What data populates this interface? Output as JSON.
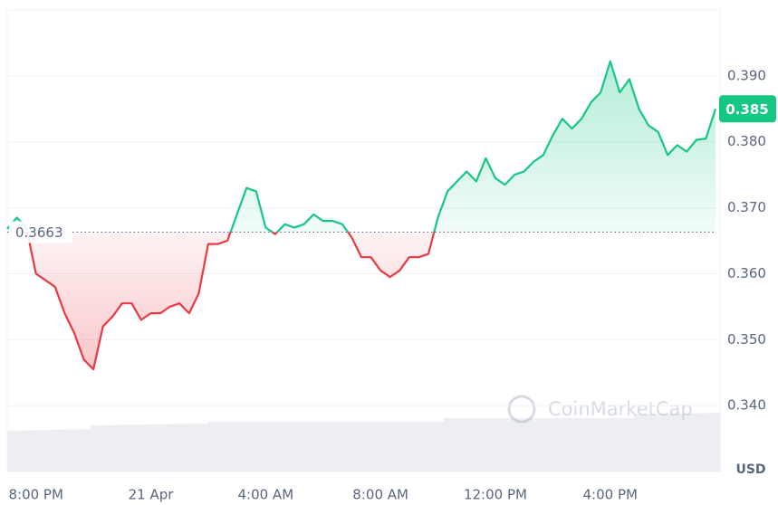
{
  "chart_data": {
    "type": "line",
    "categories": [
      null,
      null,
      null,
      "8:00 PM",
      null,
      null,
      null,
      null,
      null,
      null,
      null,
      null,
      null,
      null,
      null,
      "21 Apr",
      null,
      null,
      null,
      null,
      null,
      null,
      null,
      null,
      null,
      null,
      null,
      "4:00 AM",
      null,
      null,
      null,
      null,
      null,
      null,
      null,
      null,
      null,
      null,
      null,
      "8:00 AM",
      null,
      null,
      null,
      null,
      null,
      null,
      null,
      null,
      null,
      null,
      null,
      "12:00 PM",
      null,
      null,
      null,
      null,
      null,
      null,
      null,
      null,
      null,
      null,
      null,
      "4:00 PM",
      null,
      null,
      null,
      null,
      null,
      null,
      null,
      null,
      null,
      null,
      null
    ],
    "values": [
      0.3668,
      0.3685,
      0.367,
      0.36,
      0.359,
      0.358,
      0.354,
      0.351,
      0.347,
      0.3455,
      0.352,
      0.3535,
      0.3555,
      0.3555,
      0.353,
      0.354,
      0.354,
      0.355,
      0.3555,
      0.354,
      0.357,
      0.3645,
      0.3645,
      0.365,
      0.369,
      0.373,
      0.3725,
      0.367,
      0.366,
      0.3675,
      0.367,
      0.3675,
      0.369,
      0.368,
      0.368,
      0.3675,
      0.3655,
      0.3625,
      0.3625,
      0.3605,
      0.3595,
      0.3605,
      0.3625,
      0.3625,
      0.363,
      0.3685,
      0.3725,
      0.374,
      0.3755,
      0.374,
      0.3775,
      0.3745,
      0.3735,
      0.375,
      0.3755,
      0.377,
      0.378,
      0.381,
      0.3835,
      0.382,
      0.3835,
      0.386,
      0.3875,
      0.3922,
      0.3875,
      0.3895,
      0.385,
      0.3825,
      0.3815,
      0.378,
      0.3795,
      0.3785,
      0.3803,
      0.3805,
      0.385
    ],
    "ylim": [
      0.33,
      0.4
    ],
    "yticks": [
      {
        "value": 0.34,
        "label": "0.340"
      },
      {
        "value": 0.35,
        "label": "0.350"
      },
      {
        "value": 0.36,
        "label": "0.360"
      },
      {
        "value": 0.37,
        "label": "0.370"
      },
      {
        "value": 0.38,
        "label": "0.380"
      },
      {
        "value": 0.39,
        "label": "0.390"
      }
    ],
    "reference": 0.3663,
    "current_price": 0.385,
    "currency": "USD",
    "watermark": "CoinMarketCap",
    "color_up": "#16c784",
    "color_down": "#ea3943",
    "grid": true
  }
}
